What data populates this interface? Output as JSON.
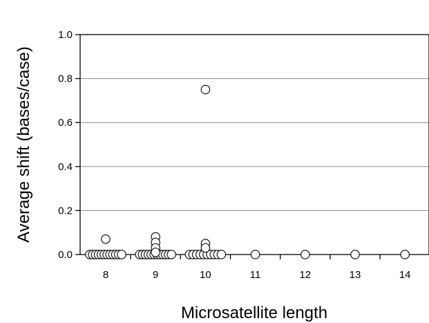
{
  "chart_data": {
    "type": "scatter",
    "title": "",
    "xlabel": "Microsatellite length",
    "ylabel": "Average shift (bases/case)",
    "categories": [
      "8",
      "9",
      "10",
      "11",
      "12",
      "13",
      "14"
    ],
    "ylim": [
      0,
      1.0
    ],
    "yticks": [
      "0.0",
      "0.2",
      "0.4",
      "0.6",
      "0.8",
      "1.0"
    ],
    "grid": true,
    "legend": "none",
    "points": [
      {
        "x": 8,
        "y": 0.0,
        "count": 12
      },
      {
        "x": 8,
        "y": 0.07
      },
      {
        "x": 9,
        "y": 0.0,
        "count": 12
      },
      {
        "x": 9,
        "y": 0.08
      },
      {
        "x": 9,
        "y": 0.055
      },
      {
        "x": 9,
        "y": 0.03
      },
      {
        "x": 9,
        "y": 0.01
      },
      {
        "x": 10,
        "y": 0.0,
        "count": 10
      },
      {
        "x": 10,
        "y": 0.75
      },
      {
        "x": 10,
        "y": 0.05
      },
      {
        "x": 10,
        "y": 0.03
      },
      {
        "x": 11,
        "y": 0.0
      },
      {
        "x": 12,
        "y": 0.0
      },
      {
        "x": 13,
        "y": 0.0
      },
      {
        "x": 14,
        "y": 0.0
      }
    ]
  }
}
